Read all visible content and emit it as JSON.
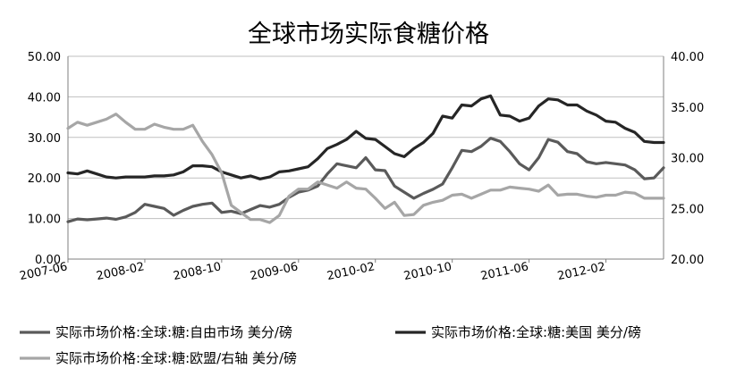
{
  "chart_data": {
    "type": "line",
    "title": "全球市场实际食糖价格",
    "x_ticks": [
      "2007-06",
      "2008-02",
      "2008-10",
      "2009-06",
      "2010-02",
      "2010-10",
      "2011-06",
      "2012-02"
    ],
    "x": [
      "2007-06",
      "2007-07",
      "2007-08",
      "2007-09",
      "2007-10",
      "2007-11",
      "2007-12",
      "2008-01",
      "2008-02",
      "2008-03",
      "2008-04",
      "2008-05",
      "2008-06",
      "2008-07",
      "2008-08",
      "2008-09",
      "2008-10",
      "2008-11",
      "2008-12",
      "2009-01",
      "2009-02",
      "2009-03",
      "2009-04",
      "2009-05",
      "2009-06",
      "2009-07",
      "2009-08",
      "2009-09",
      "2009-10",
      "2009-11",
      "2009-12",
      "2010-01",
      "2010-02",
      "2010-03",
      "2010-04",
      "2010-05",
      "2010-06",
      "2010-07",
      "2010-08",
      "2010-09",
      "2010-10",
      "2010-11",
      "2010-12",
      "2011-01",
      "2011-02",
      "2011-03",
      "2011-04",
      "2011-05",
      "2011-06",
      "2011-07",
      "2011-08",
      "2011-09",
      "2011-10",
      "2011-11",
      "2011-12",
      "2012-01",
      "2012-02",
      "2012-03",
      "2012-04",
      "2012-05",
      "2012-06",
      "2012-07",
      "2012-08"
    ],
    "y_left": {
      "range": [
        0,
        50
      ],
      "ticks": [
        "0.00",
        "10.00",
        "20.00",
        "30.00",
        "40.00",
        "50.00"
      ]
    },
    "y_right": {
      "range": [
        20,
        40
      ],
      "ticks": [
        "20.00",
        "25.00",
        "30.00",
        "35.00",
        "40.00"
      ]
    },
    "grid": true,
    "legend_position": "bottom",
    "series": [
      {
        "name": "实际市场价格:全球:糖:自由市场 美分/磅",
        "axis": "left",
        "color": "#5a5a5a",
        "values": [
          9.2,
          9.9,
          9.7,
          9.9,
          10.1,
          9.8,
          10.4,
          11.5,
          13.5,
          13.0,
          12.5,
          10.8,
          12.0,
          13.0,
          13.5,
          13.8,
          11.5,
          11.8,
          11.2,
          12.2,
          13.2,
          12.8,
          13.5,
          15.2,
          16.5,
          17.0,
          18.0,
          21.0,
          23.5,
          23.0,
          22.5,
          25.0,
          22.0,
          21.8,
          18.0,
          16.5,
          15.0,
          16.2,
          17.2,
          18.5,
          22.5,
          26.8,
          26.5,
          27.8,
          29.8,
          29.0,
          26.5,
          23.5,
          22.0,
          25.0,
          29.5,
          28.8,
          26.5,
          26.0,
          24.0,
          23.5,
          23.8,
          23.5,
          23.2,
          22.0,
          19.8,
          20.0,
          22.5
        ]
      },
      {
        "name": "实际市场价格:全球:糖:美国 美分/磅",
        "axis": "right",
        "color": "#262626",
        "values": [
          28.5,
          28.4,
          28.7,
          28.4,
          28.1,
          28.0,
          28.1,
          28.1,
          28.1,
          28.2,
          28.2,
          28.3,
          28.6,
          29.2,
          29.2,
          29.1,
          28.6,
          28.3,
          28.0,
          28.2,
          27.9,
          28.1,
          28.6,
          28.7,
          28.9,
          29.1,
          29.9,
          30.9,
          31.3,
          31.8,
          32.6,
          31.9,
          31.8,
          31.1,
          30.4,
          30.1,
          30.9,
          31.5,
          32.4,
          34.1,
          33.9,
          35.2,
          35.1,
          35.8,
          36.1,
          34.2,
          34.1,
          33.6,
          33.9,
          35.1,
          35.8,
          35.7,
          35.2,
          35.2,
          34.6,
          34.2,
          33.6,
          33.5,
          32.9,
          32.5,
          31.6,
          31.5,
          31.5
        ]
      },
      {
        "name": "实际市场价格:全球:糖:欧盟/右轴 美分/磅",
        "axis": "right",
        "color": "#a6a6a6",
        "values": [
          32.9,
          33.5,
          33.2,
          33.5,
          33.8,
          34.3,
          33.5,
          32.8,
          32.8,
          33.3,
          33.0,
          32.8,
          32.8,
          33.2,
          31.6,
          30.3,
          28.5,
          25.3,
          24.6,
          23.9,
          23.9,
          23.6,
          24.3,
          26.2,
          26.9,
          26.9,
          27.6,
          27.3,
          27.0,
          27.6,
          27.0,
          26.9,
          26.0,
          25.0,
          25.6,
          24.3,
          24.4,
          25.3,
          25.6,
          25.8,
          26.3,
          26.4,
          26.0,
          26.4,
          26.8,
          26.8,
          27.1,
          27.0,
          26.9,
          26.7,
          27.3,
          26.3,
          26.4,
          26.4,
          26.2,
          26.1,
          26.3,
          26.3,
          26.6,
          26.5,
          26.0,
          26.0,
          26.0
        ]
      }
    ]
  }
}
